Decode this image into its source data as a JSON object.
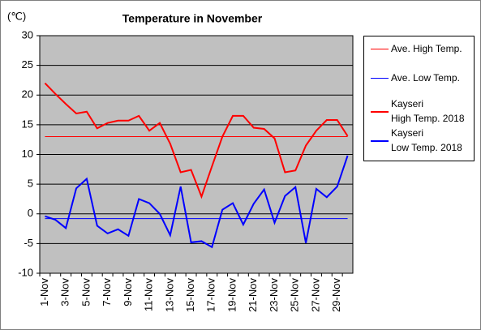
{
  "chart_data": {
    "type": "line",
    "title": "Temperature in November",
    "y_label": "(℃)",
    "categories": [
      "1-Nov",
      null,
      "3-Nov",
      null,
      "5-Nov",
      null,
      "7-Nov",
      null,
      "9-Nov",
      null,
      "11-Nov",
      null,
      "13-Nov",
      null,
      "15-Nov",
      null,
      "17-Nov",
      null,
      "19-Nov",
      null,
      "21-Nov",
      null,
      "23-Nov",
      null,
      "25-Nov",
      null,
      "27-Nov",
      null,
      "29-Nov",
      null
    ],
    "series": [
      {
        "name": "Ave. High Temp.",
        "color": "#ff0000",
        "width": 1,
        "values": [
          13,
          13,
          13,
          13,
          13,
          13,
          13,
          13,
          13,
          13,
          13,
          13,
          13,
          13,
          13,
          13,
          13,
          13,
          13,
          13,
          13,
          13,
          13,
          13,
          13,
          13,
          13,
          13,
          13,
          13
        ]
      },
      {
        "name": "Ave. Low Temp.",
        "color": "#0000ff",
        "width": 1,
        "values": [
          -0.8,
          -0.8,
          -0.8,
          -0.8,
          -0.8,
          -0.8,
          -0.8,
          -0.8,
          -0.8,
          -0.8,
          -0.8,
          -0.8,
          -0.8,
          -0.8,
          -0.8,
          -0.8,
          -0.8,
          -0.8,
          -0.8,
          -0.8,
          -0.8,
          -0.8,
          -0.8,
          -0.8,
          -0.8,
          -0.8,
          -0.8,
          -0.8,
          -0.8,
          -0.8
        ]
      },
      {
        "name": "Kayseri\nHigh Temp. 2018",
        "color": "#ff0000",
        "width": 2,
        "values": [
          22,
          20.2,
          18.5,
          16.9,
          17.2,
          14.4,
          15.3,
          15.7,
          15.7,
          16.5,
          14.0,
          15.3,
          11.8,
          7.0,
          7.4,
          2.9,
          8.0,
          13.0,
          16.5,
          16.5,
          14.5,
          14.3,
          12.7,
          7.0,
          7.3,
          11.5,
          14.0,
          15.8,
          15.8,
          13.1
        ]
      },
      {
        "name": "Kayseri\nLow Temp. 2018",
        "color": "#0000ff",
        "width": 2,
        "values": [
          -0.4,
          -1.0,
          -2.4,
          4.3,
          5.9,
          -2.0,
          -3.3,
          -2.6,
          -3.7,
          2.5,
          1.8,
          0.0,
          -3.6,
          4.6,
          -4.8,
          -4.6,
          -5.6,
          0.7,
          1.8,
          -1.8,
          1.7,
          4.1,
          -1.5,
          3.0,
          4.5,
          -4.9,
          4.2,
          2.8,
          4.6,
          9.8
        ]
      }
    ],
    "ylim": [
      -10,
      30
    ],
    "yticks": [
      -10,
      -5,
      0,
      5,
      10,
      15,
      20,
      25,
      30
    ],
    "grid": true,
    "legend": "right"
  }
}
